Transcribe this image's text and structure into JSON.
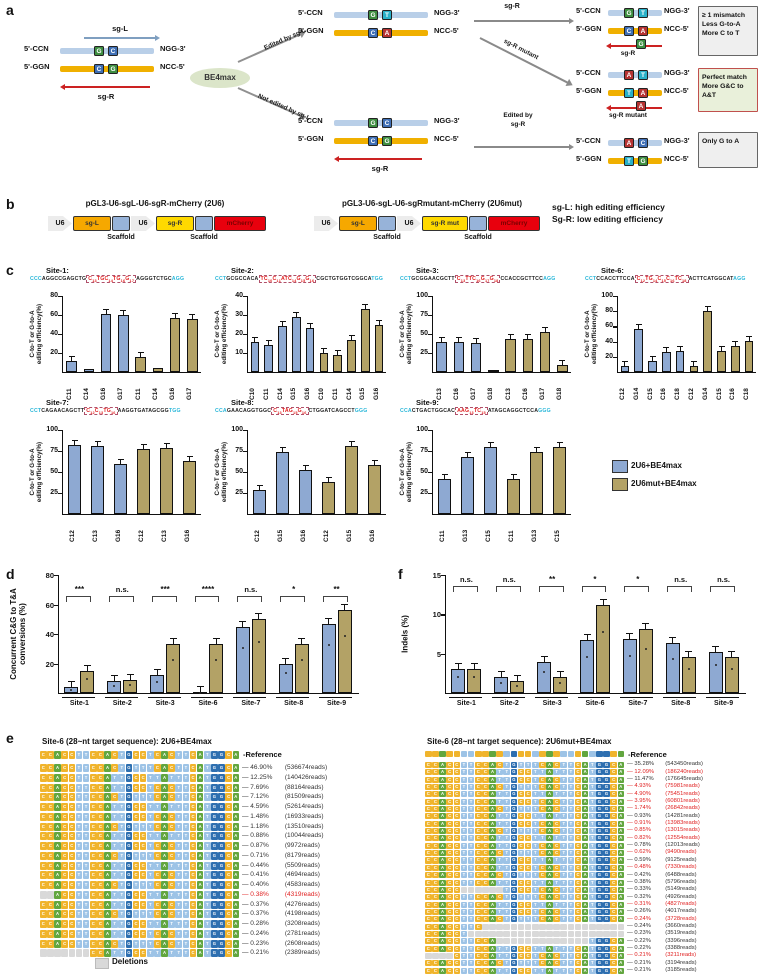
{
  "figure": {
    "panels": {
      "a": "a",
      "b": "b",
      "c": "c",
      "d": "d",
      "e": "e",
      "f": "f"
    }
  },
  "panel_a": {
    "sg_l_label": "sg-L",
    "sg_r_label": "sg-R",
    "sg_r_mutant_label": "sg-R mutant",
    "enzyme": "BE4max",
    "arrow_top_label": "Edited by sg-L",
    "arrow_bottom_label": "Not edited by sg-L",
    "arrow_edited_sgr_label_line1": "Edited by",
    "arrow_edited_sgr_label_line2": "sg-R",
    "ends": {
      "top_left": "5'-CCN",
      "top_right": "NGG-3'",
      "bot_left": "5'-GGN",
      "bot_right": "NCC-5'"
    },
    "base_colors": {
      "A": "#b63433",
      "C": "#3f6fb5",
      "G": "#3e8e41",
      "T": "#29b0c8"
    },
    "duplexes": {
      "left": {
        "top": [
          "G",
          "C"
        ],
        "bottom": [
          "C",
          "G"
        ]
      },
      "mid_top": {
        "top": [
          "G",
          "T"
        ],
        "bottom": [
          "C",
          "A"
        ]
      },
      "mid_bot": {
        "top": [
          "G",
          "C"
        ],
        "bottom": [
          "C",
          "G"
        ]
      },
      "res1": {
        "top": [
          "G",
          "T"
        ],
        "bottom": [
          "C",
          "A"
        ],
        "guide_base": "G",
        "guide_label": "sg-R"
      },
      "res2": {
        "top": [
          "A",
          "T"
        ],
        "bottom": [
          "T",
          "A"
        ],
        "guide_base": "A",
        "guide_label": "sg-R mutant"
      },
      "res3": {
        "top": [
          "A",
          "C"
        ],
        "bottom": [
          "T",
          "G"
        ]
      }
    },
    "result_boxes": [
      {
        "style": "gray",
        "lines": [
          "≥ 1 mismatch",
          "Less G-to-A",
          "More C to T"
        ]
      },
      {
        "style": "green",
        "lines": [
          "Perfect match",
          "More G&C to A&T"
        ]
      },
      {
        "style": "gray",
        "lines": [
          "Only G to A"
        ]
      }
    ]
  },
  "panel_b": {
    "constructs": [
      {
        "title": "pGL3-U6-sgL-U6-sgR-mCherry (2U6)",
        "elements": [
          {
            "label": "U6",
            "type": "u6"
          },
          {
            "label": "sg-L",
            "color": "#f6a800"
          },
          {
            "label": "",
            "type": "scaffold"
          },
          {
            "label": "U6",
            "type": "u6"
          },
          {
            "label": "sg-R",
            "color": "#ffd900"
          },
          {
            "label": "",
            "type": "scaffold"
          },
          {
            "label": "mCherry",
            "color": "#e8000d",
            "text": "#7a0000"
          }
        ]
      },
      {
        "title": "pGL3-U6-sgL-U6-sgRmutant-mCherry (2U6mut)",
        "elements": [
          {
            "label": "U6",
            "type": "u6"
          },
          {
            "label": "sg-L",
            "color": "#f6a800"
          },
          {
            "label": "",
            "type": "scaffold"
          },
          {
            "label": "U6",
            "type": "u6"
          },
          {
            "label": "sg-R mut",
            "color": "#ffd900"
          },
          {
            "label": "",
            "type": "scaffold"
          },
          {
            "label": "mCherry",
            "color": "#e8000d",
            "text": "#7a0000"
          }
        ]
      }
    ],
    "scaffold_label": "Scaffold",
    "notes": [
      "sg-L: high editing efficiency",
      "Sg-R: low editing efficiency"
    ]
  },
  "panel_c": {
    "ylabel_lines": [
      "C-to-T or G-to-A",
      "editing efficiency(%)"
    ],
    "series_colors": {
      "blue": "#8ea9d2",
      "tan": "#b3a266"
    },
    "legend": [
      {
        "label": "2U6+BE4max",
        "color": "#8ea9d2"
      },
      {
        "label": "2U6mut+BE4max",
        "color": "#b3a266"
      }
    ],
    "sites": [
      {
        "type": "bar",
        "name": "Site-1",
        "seq": {
          "pre": "CCC",
          "b1": "AGGCCGAGCTG",
          "red": "C13TGC14TG16G17",
          "b2": "AGGGTCTGC",
          "post": "AGG"
        },
        "ymax": 80,
        "yticks": [
          20,
          40,
          60,
          80
        ],
        "xlabels": [
          "C11",
          "C14",
          "G16",
          "G17"
        ],
        "blue": [
          12,
          3,
          61,
          60
        ],
        "tan": [
          16,
          4,
          57,
          56
        ]
      },
      {
        "type": "bar",
        "name": "Site-2",
        "seq": {
          "pre": "CCT",
          "b1": "GCGCCACA",
          "red": "TC10C11ATC14G15G16",
          "b2": "CGCTGTGGTCGGCA",
          "post": "TGG"
        },
        "ymax": 40,
        "yticks": [
          10,
          20,
          30,
          40
        ],
        "xlabels": [
          "C10",
          "C11",
          "C14",
          "G15",
          "G16"
        ],
        "blue": [
          16,
          14,
          24,
          29,
          23
        ],
        "tan": [
          10,
          9,
          17,
          33,
          25
        ]
      },
      {
        "type": "bar",
        "name": "Site-3",
        "seq": {
          "pre": "CCT",
          "b1": "GCGGAACGCTT",
          "red": "C13TTC16G17G18",
          "b2": "CCACCGCTTCC",
          "post": "AGG"
        },
        "ymax": 100,
        "yticks": [
          25,
          50,
          75,
          100
        ],
        "xlabels": [
          "C13",
          "C16",
          "G17",
          "G18"
        ],
        "blue": [
          40,
          39,
          38,
          3
        ],
        "tan": [
          44,
          43,
          52,
          9
        ]
      },
      {
        "type": "bar",
        "name": "Site-6",
        "seq": {
          "pre": "CCT",
          "b1": "CCACCTTCCA",
          "red": "C12TG14C15C16TC18",
          "b2": "ACTTCATGGCAT",
          "post": "AGG"
        },
        "ymax": 100,
        "yticks": [
          20,
          40,
          60,
          80,
          100
        ],
        "xlabels": [
          "C12",
          "G14",
          "C15",
          "C16",
          "C18"
        ],
        "blue": [
          8,
          57,
          14,
          26,
          27
        ],
        "tan": [
          8,
          80,
          27,
          34,
          41
        ]
      },
      {
        "type": "bar",
        "name": "Site-7",
        "seq": {
          "pre": "CCT",
          "b1": "CAGAACAGCTT",
          "red": "C12C13TG16",
          "b2": "AAGGTGATAGCGG",
          "post": "TGG"
        },
        "ymax": 100,
        "yticks": [
          25,
          50,
          75,
          100
        ],
        "xlabels": [
          "C12",
          "C13",
          "G16"
        ],
        "blue": [
          82,
          81,
          59
        ],
        "tan": [
          77,
          79,
          63
        ]
      },
      {
        "type": "bar",
        "name": "Site-8",
        "seq": {
          "pre": "CCA",
          "b1": "GAACAGGTGGC",
          "red": "C13TAG15G16",
          "b2": "CTGGATCAGCCT",
          "post": "GGG"
        },
        "ymax": 100,
        "yticks": [
          25,
          50,
          75,
          100
        ],
        "xlabels": [
          "C12",
          "G15",
          "G16"
        ],
        "blue": [
          29,
          74,
          52
        ],
        "tan": [
          38,
          81,
          58
        ]
      },
      {
        "type": "bar",
        "name": "Site-9",
        "seq": {
          "pre": "CCA",
          "b1": "CTGACTGGCAC",
          "red": "AAG13TC15",
          "b2": "ATAGCAGGCTCCA",
          "post": "GGG"
        },
        "ymax": 100,
        "yticks": [
          25,
          50,
          75,
          100
        ],
        "xlabels": [
          "C11",
          "G13",
          "C15"
        ],
        "blue": [
          42,
          68,
          80
        ],
        "tan": [
          42,
          74,
          80
        ]
      }
    ]
  },
  "panel_d": {
    "type": "bar",
    "ylabel_lines": [
      "Concurrent C&G to T&A",
      "conversions (%)"
    ],
    "ymax": 80,
    "yticks": [
      20,
      40,
      60,
      80
    ],
    "categories": [
      "Site-1",
      "Site-2",
      "Site-3",
      "Site-6",
      "Site-7",
      "Site-8",
      "Site-9"
    ],
    "blue": [
      4,
      8,
      12,
      1,
      45,
      20,
      47
    ],
    "tan": [
      15,
      9,
      33,
      33,
      50,
      33,
      56
    ],
    "sig": [
      "***",
      "n.s.",
      "***",
      "****",
      "n.s.",
      "*",
      "**"
    ]
  },
  "panel_f": {
    "type": "bar",
    "ylabel_lines": [
      "Indels (%)"
    ],
    "ymax": 15,
    "yticks": [
      5,
      10,
      15
    ],
    "categories": [
      "Site-1",
      "Site-2",
      "Site-3",
      "Site-6",
      "Site-7",
      "Site-8",
      "Site-9"
    ],
    "blue": [
      3,
      2,
      4,
      6.8,
      6.9,
      6.3,
      5.2
    ],
    "tan": [
      3,
      1.5,
      2,
      11.2,
      8.1,
      4.6,
      4.6
    ],
    "sig": [
      "n.s.",
      "n.s.",
      "**",
      "*",
      "*",
      "n.s.",
      "n.s."
    ]
  },
  "panel_e": {
    "reference_label": "-Reference",
    "deletions_label": "Deletions",
    "ref_seq": "CCACCTTCCACTGCCTCACTTCATGGCA",
    "base_colors": {
      "A": "#62a63f",
      "C": "#f0b42c",
      "G": "#2e6fb0",
      "T": "#9dc3e6",
      "del": "#d9d9d9"
    },
    "tables": [
      {
        "title": "Site-6 (28~nt target sequence): 2U6+BE4max",
        "rows": [
          {
            "pct": "46.90%",
            "reads": "(536674reads)"
          },
          {
            "pct": "12.25%",
            "reads": "(140426reads)"
          },
          {
            "pct": "7.69%",
            "reads": "(88164reads)"
          },
          {
            "pct": "7.12%",
            "reads": "(81509reads)"
          },
          {
            "pct": "4.59%",
            "reads": "(52614reads)"
          },
          {
            "pct": "1.48%",
            "reads": "(16933reads)"
          },
          {
            "pct": "1.18%",
            "reads": "(13510reads)"
          },
          {
            "pct": "0.88%",
            "reads": "(10044reads)"
          },
          {
            "pct": "0.87%",
            "reads": "(9972reads)"
          },
          {
            "pct": "0.71%",
            "reads": "(8179reads)"
          },
          {
            "pct": "0.44%",
            "reads": "(5509reads)"
          },
          {
            "pct": "0.41%",
            "reads": "(4694reads)"
          },
          {
            "pct": "0.40%",
            "reads": "(4583reads)"
          },
          {
            "pct": "0.38%",
            "reads": "(4319reads)",
            "red": true,
            "del": [
              0,
              1
            ]
          },
          {
            "pct": "0.37%",
            "reads": "(4276reads)"
          },
          {
            "pct": "0.37%",
            "reads": "(4198reads)"
          },
          {
            "pct": "0.28%",
            "reads": "(3208reads)"
          },
          {
            "pct": "0.24%",
            "reads": "(2781reads)"
          },
          {
            "pct": "0.23%",
            "reads": "(2608reads)"
          },
          {
            "pct": "0.21%",
            "reads": "(2389reads)",
            "del": [
              0,
              6
            ]
          }
        ]
      },
      {
        "title": "Site-6 (28~nt target sequence): 2U6mut+BE4max",
        "rows": [
          {
            "pct": "35.28%",
            "reads": "(543450reads)"
          },
          {
            "pct": "12.09%",
            "reads": "(186240reads)",
            "red": true
          },
          {
            "pct": "11.47%",
            "reads": "(176645reads)"
          },
          {
            "pct": "4.93%",
            "reads": "(75981reads)",
            "red": true
          },
          {
            "pct": "4.90%",
            "reads": "(75451reads)",
            "red": true
          },
          {
            "pct": "3.95%",
            "reads": "(60801reads)",
            "red": true
          },
          {
            "pct": "1.74%",
            "reads": "(26842reads)",
            "red": true
          },
          {
            "pct": "0.93%",
            "reads": "(14281reads)"
          },
          {
            "pct": "0.91%",
            "reads": "(13983reads)",
            "red": true
          },
          {
            "pct": "0.85%",
            "reads": "(13015reads)",
            "red": true
          },
          {
            "pct": "0.82%",
            "reads": "(12554reads)",
            "red": true
          },
          {
            "pct": "0.78%",
            "reads": "(12013reads)"
          },
          {
            "pct": "0.62%",
            "reads": "(9490reads)",
            "red": true
          },
          {
            "pct": "0.59%",
            "reads": "(9125reads)"
          },
          {
            "pct": "0.48%",
            "reads": "(7330reads)",
            "red": true
          },
          {
            "pct": "0.42%",
            "reads": "(6488reads)"
          },
          {
            "pct": "0.38%",
            "reads": "(5796reads)"
          },
          {
            "pct": "0.33%",
            "reads": "(5149reads)",
            "del": [
              5,
              10
            ]
          },
          {
            "pct": "0.32%",
            "reads": "(4926reads)"
          },
          {
            "pct": "0.31%",
            "reads": "(4827reads)",
            "red": true
          },
          {
            "pct": "0.26%",
            "reads": "(4017reads)"
          },
          {
            "pct": "0.24%",
            "reads": "(3728reads)",
            "red": true
          },
          {
            "pct": "0.24%",
            "reads": "(3660reads)",
            "del": [
              8,
              27
            ]
          },
          {
            "pct": "0.23%",
            "reads": "(3519reads)",
            "del": [
              6,
              27
            ]
          },
          {
            "pct": "0.22%",
            "reads": "(3396reads)",
            "del": [
              10,
              22
            ]
          },
          {
            "pct": "0.22%",
            "reads": "(3388reads)"
          },
          {
            "pct": "0.21%",
            "reads": "(3211reads)",
            "red": true,
            "del": [
              0,
              3
            ]
          },
          {
            "pct": "0.21%",
            "reads": "(3194reads)"
          },
          {
            "pct": "0.21%",
            "reads": "(3185reads)"
          }
        ]
      }
    ]
  }
}
